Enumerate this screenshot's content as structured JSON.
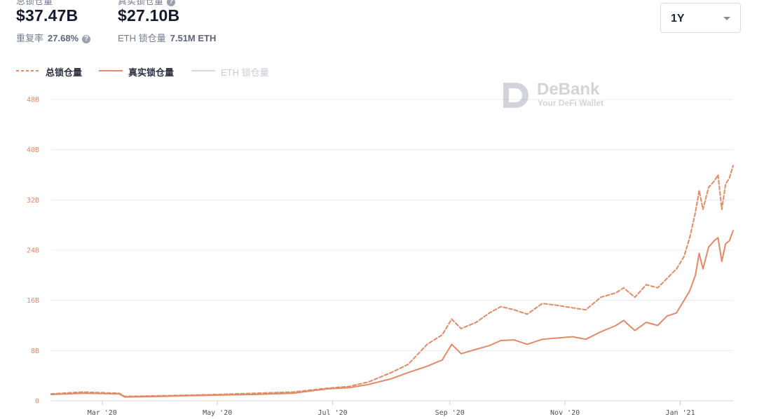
{
  "stats": {
    "total_tvl": {
      "label": "总锁仓量",
      "value": "$37.47B",
      "sub_label": "重复率",
      "sub_value": "27.68%",
      "help_icon": "question-circle-icon"
    },
    "real_tvl": {
      "label": "真实锁仓量",
      "value": "$27.10B",
      "sub_label": "ETH 锁仓量",
      "sub_value": "7.51M ETH",
      "help_icon": "question-circle-icon"
    }
  },
  "range_select": {
    "value": "1Y",
    "icon": "chevron-down-icon"
  },
  "watermark": {
    "title": "DeBank",
    "subtitle": "Your DeFi Wallet",
    "icon": "debank-logo-icon"
  },
  "colors": {
    "accent": "#e08a67",
    "grid": "#ececf0",
    "axis_text": "#e08a67",
    "x_text": "#4a4f5c",
    "disabled": "#d6d8dd"
  },
  "chart_data": {
    "type": "line",
    "ylim": [
      0,
      48
    ],
    "y_ticks": [
      {
        "value": 0,
        "label": "0"
      },
      {
        "value": 8,
        "label": "8B"
      },
      {
        "value": 16,
        "label": "16B"
      },
      {
        "value": 24,
        "label": "24B"
      },
      {
        "value": 32,
        "label": "32B"
      },
      {
        "value": 40,
        "label": "40B"
      },
      {
        "value": 48,
        "label": "48B"
      }
    ],
    "x_range": [
      "2020-02-03",
      "2021-01-29"
    ],
    "x_ticks": [
      {
        "date": "2020-03-01",
        "label": "Mar '20"
      },
      {
        "date": "2020-05-01",
        "label": "May '20"
      },
      {
        "date": "2020-07-01",
        "label": "Jul '20"
      },
      {
        "date": "2020-09-01",
        "label": "Sep '20"
      },
      {
        "date": "2020-11-01",
        "label": "Nov '20"
      },
      {
        "date": "2021-01-01",
        "label": "Jan '21"
      }
    ],
    "legend_position": "top-left",
    "series": [
      {
        "name": "总锁仓量",
        "style": "dashed",
        "visible": true,
        "points": [
          [
            "2020-02-03",
            1.1
          ],
          [
            "2020-02-20",
            1.4
          ],
          [
            "2020-03-10",
            1.2
          ],
          [
            "2020-03-13",
            0.7
          ],
          [
            "2020-04-01",
            0.8
          ],
          [
            "2020-05-01",
            1.0
          ],
          [
            "2020-05-20",
            1.2
          ],
          [
            "2020-06-10",
            1.4
          ],
          [
            "2020-06-28",
            2.0
          ],
          [
            "2020-07-10",
            2.3
          ],
          [
            "2020-07-20",
            3.0
          ],
          [
            "2020-08-01",
            4.5
          ],
          [
            "2020-08-10",
            5.8
          ],
          [
            "2020-08-20",
            9.0
          ],
          [
            "2020-08-28",
            10.5
          ],
          [
            "2020-09-02",
            13.0
          ],
          [
            "2020-09-07",
            11.5
          ],
          [
            "2020-09-15",
            12.5
          ],
          [
            "2020-09-22",
            14.0
          ],
          [
            "2020-09-28",
            15.0
          ],
          [
            "2020-10-05",
            14.5
          ],
          [
            "2020-10-12",
            13.8
          ],
          [
            "2020-10-20",
            15.5
          ],
          [
            "2020-10-28",
            15.2
          ],
          [
            "2020-11-05",
            14.8
          ],
          [
            "2020-11-12",
            14.5
          ],
          [
            "2020-11-20",
            16.5
          ],
          [
            "2020-11-28",
            17.2
          ],
          [
            "2020-12-02",
            18.0
          ],
          [
            "2020-12-08",
            16.5
          ],
          [
            "2020-12-14",
            18.5
          ],
          [
            "2020-12-20",
            18.0
          ],
          [
            "2020-12-25",
            19.5
          ],
          [
            "2020-12-30",
            21.0
          ],
          [
            "2021-01-03",
            23.0
          ],
          [
            "2021-01-06",
            26.0
          ],
          [
            "2021-01-09",
            30.0
          ],
          [
            "2021-01-11",
            33.5
          ],
          [
            "2021-01-13",
            30.5
          ],
          [
            "2021-01-16",
            34.0
          ],
          [
            "2021-01-19",
            35.0
          ],
          [
            "2021-01-21",
            36.0
          ],
          [
            "2021-01-23",
            30.5
          ],
          [
            "2021-01-25",
            34.5
          ],
          [
            "2021-01-27",
            35.5
          ],
          [
            "2021-01-29",
            37.47
          ]
        ]
      },
      {
        "name": "真实锁仓量",
        "style": "solid",
        "visible": true,
        "points": [
          [
            "2020-02-03",
            1.0
          ],
          [
            "2020-02-20",
            1.2
          ],
          [
            "2020-03-10",
            1.1
          ],
          [
            "2020-03-13",
            0.6
          ],
          [
            "2020-04-01",
            0.7
          ],
          [
            "2020-05-01",
            0.9
          ],
          [
            "2020-05-20",
            1.0
          ],
          [
            "2020-06-10",
            1.2
          ],
          [
            "2020-06-28",
            1.9
          ],
          [
            "2020-07-10",
            2.1
          ],
          [
            "2020-07-20",
            2.6
          ],
          [
            "2020-08-01",
            3.5
          ],
          [
            "2020-08-10",
            4.5
          ],
          [
            "2020-08-20",
            5.5
          ],
          [
            "2020-08-28",
            6.5
          ],
          [
            "2020-09-02",
            9.0
          ],
          [
            "2020-09-07",
            7.5
          ],
          [
            "2020-09-15",
            8.2
          ],
          [
            "2020-09-22",
            8.8
          ],
          [
            "2020-09-28",
            9.6
          ],
          [
            "2020-10-05",
            9.7
          ],
          [
            "2020-10-12",
            9.0
          ],
          [
            "2020-10-20",
            9.8
          ],
          [
            "2020-10-28",
            10.0
          ],
          [
            "2020-11-05",
            10.2
          ],
          [
            "2020-11-12",
            9.8
          ],
          [
            "2020-11-20",
            11.0
          ],
          [
            "2020-11-28",
            12.0
          ],
          [
            "2020-12-02",
            12.8
          ],
          [
            "2020-12-08",
            11.2
          ],
          [
            "2020-12-14",
            12.5
          ],
          [
            "2020-12-20",
            12.0
          ],
          [
            "2020-12-25",
            13.5
          ],
          [
            "2020-12-30",
            14.0
          ],
          [
            "2021-01-03",
            16.0
          ],
          [
            "2021-01-06",
            17.5
          ],
          [
            "2021-01-09",
            20.0
          ],
          [
            "2021-01-11",
            23.5
          ],
          [
            "2021-01-13",
            21.0
          ],
          [
            "2021-01-16",
            24.5
          ],
          [
            "2021-01-19",
            25.5
          ],
          [
            "2021-01-21",
            26.0
          ],
          [
            "2021-01-23",
            22.2
          ],
          [
            "2021-01-25",
            25.0
          ],
          [
            "2021-01-27",
            25.5
          ],
          [
            "2021-01-29",
            27.1
          ]
        ]
      },
      {
        "name": "ETH 锁仓量",
        "style": "solid",
        "visible": false,
        "points": []
      }
    ]
  }
}
